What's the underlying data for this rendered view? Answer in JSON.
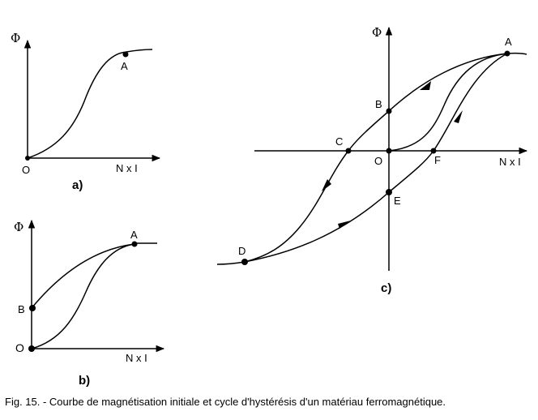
{
  "panel_a": {
    "y_axis": "Φ",
    "x_axis": "N x I",
    "origin": "O",
    "point_a": "A",
    "tag": "a)"
  },
  "panel_b": {
    "y_axis": "Φ",
    "x_axis": "N x I",
    "origin": "O",
    "point_a": "A",
    "point_b": "B",
    "tag": "b)"
  },
  "panel_c": {
    "y_axis": "Φ",
    "x_axis": "N x I",
    "origin": "O",
    "point_a": "A",
    "point_b": "B",
    "point_c": "C",
    "point_d": "D",
    "point_e": "E",
    "point_f": "F",
    "tag": "c)"
  },
  "caption": "Fig. 15. - Courbe de magnétisation initiale et cycle d'hystérésis d'un matériau ferromagnétique."
}
